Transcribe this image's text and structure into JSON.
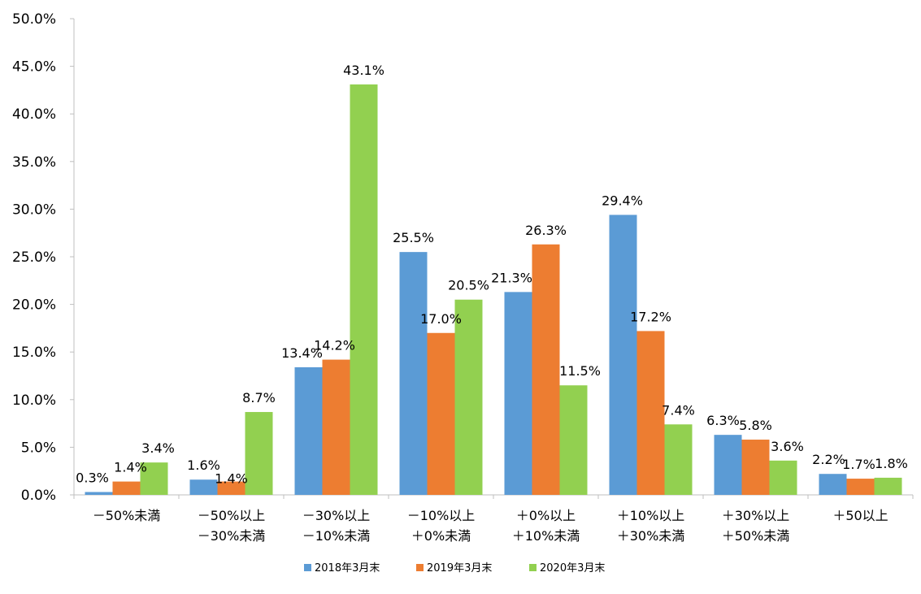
{
  "chart_data": {
    "type": "bar",
    "title": "",
    "xlabel": "",
    "ylabel": "",
    "ylim": [
      0,
      50
    ],
    "yticks": [
      "0.0%",
      "5.0%",
      "10.0%",
      "15.0%",
      "20.0%",
      "25.0%",
      "30.0%",
      "35.0%",
      "40.0%",
      "45.0%",
      "50.0%"
    ],
    "grid": false,
    "legend_position": "bottom",
    "categories": [
      [
        "－50%未満"
      ],
      [
        "－50%以上",
        "－30%未満"
      ],
      [
        "－30%以上",
        "－10%未満"
      ],
      [
        "－10%以上",
        "＋0%未満"
      ],
      [
        "＋0%以上",
        "＋10%未満"
      ],
      [
        "＋10%以上",
        "＋30%未満"
      ],
      [
        "＋30%以上",
        "＋50%未満"
      ],
      [
        "＋50以上"
      ]
    ],
    "series": [
      {
        "name": "2018年3月末",
        "color": "#5b9bd5",
        "values": [
          0.3,
          1.6,
          13.4,
          25.5,
          21.3,
          29.4,
          6.3,
          2.2
        ],
        "labels": [
          "0.3%",
          "1.6%",
          "13.4%",
          "25.5%",
          "21.3%",
          "29.4%",
          "6.3%",
          "2.2%"
        ]
      },
      {
        "name": "2019年3月末",
        "color": "#ed7d31",
        "values": [
          1.4,
          1.4,
          14.2,
          17.0,
          26.3,
          17.2,
          5.8,
          1.7
        ],
        "labels": [
          "1.4%",
          "1.4%",
          "14.2%",
          "17.0%",
          "26.3%",
          "17.2%",
          "5.8%",
          "1.7%"
        ]
      },
      {
        "name": "2020年3月末",
        "color": "#92d050",
        "values": [
          3.4,
          8.7,
          43.1,
          20.5,
          11.5,
          7.4,
          3.6,
          1.8
        ],
        "labels": [
          "3.4%",
          "8.7%",
          "43.1%",
          "20.5%",
          "11.5%",
          "7.4%",
          "3.6%",
          "1.8%"
        ]
      }
    ]
  }
}
